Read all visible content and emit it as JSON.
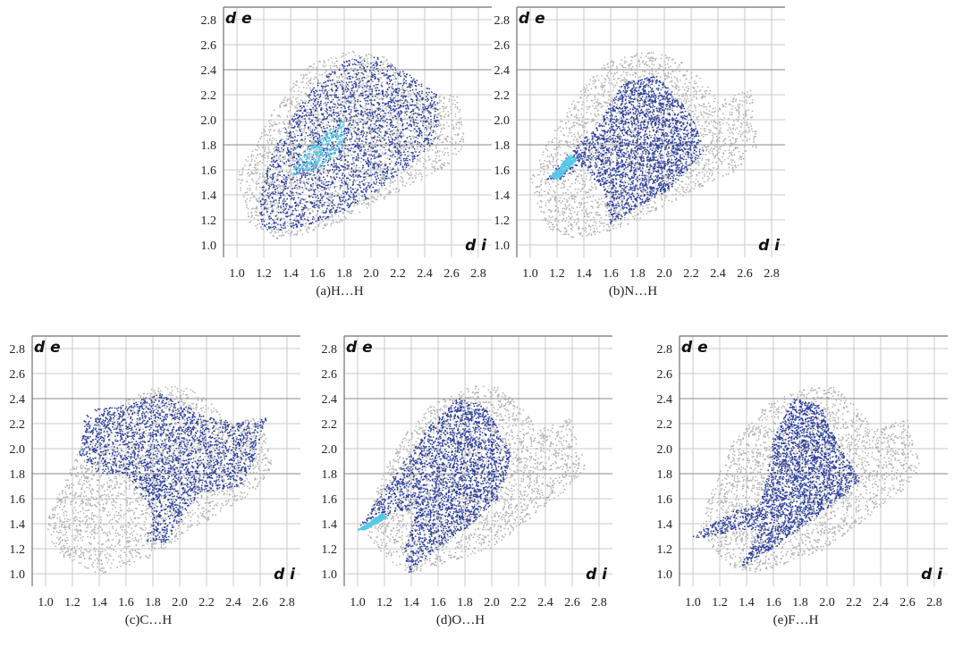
{
  "figure": {
    "axis_y_title": "d e",
    "axis_x_title": "d i",
    "colors": {
      "grey_region": "#b4b4b4",
      "blue_points": "#2b3f9f",
      "cyan_hotspot": "#57c9ea",
      "grid": "#c9c9c9",
      "background": "#ffffff"
    }
  },
  "chart_data": [
    {
      "type": "scatter",
      "caption": "(a)H…H",
      "x_ticks": [
        "1.0",
        "1.2",
        "1.4",
        "1.6",
        "1.8",
        "2.0",
        "2.2",
        "2.4",
        "2.6",
        "2.8"
      ],
      "y_ticks": [
        "1.0",
        "1.2",
        "1.4",
        "1.6",
        "1.8",
        "2.0",
        "2.2",
        "2.4",
        "2.6",
        "2.8"
      ],
      "xlim": [
        0.9,
        2.9
      ],
      "ylim": [
        0.9,
        2.9
      ],
      "xlabel": "d i",
      "ylabel": "d e",
      "highlight": "H…H",
      "region_grey": [
        [
          1.0,
          1.55
        ],
        [
          1.05,
          1.35
        ],
        [
          1.1,
          1.15
        ],
        [
          1.3,
          1.05
        ],
        [
          1.6,
          1.1
        ],
        [
          1.9,
          1.25
        ],
        [
          2.25,
          1.45
        ],
        [
          2.55,
          1.6
        ],
        [
          2.7,
          1.8
        ],
        [
          2.65,
          2.25
        ],
        [
          2.4,
          2.15
        ],
        [
          2.3,
          2.3
        ],
        [
          2.1,
          2.5
        ],
        [
          1.85,
          2.55
        ],
        [
          1.55,
          2.45
        ],
        [
          1.35,
          2.2
        ],
        [
          1.2,
          1.95
        ]
      ],
      "region_blue": [
        [
          1.15,
          1.3
        ],
        [
          1.2,
          1.12
        ],
        [
          1.4,
          1.12
        ],
        [
          1.65,
          1.2
        ],
        [
          1.95,
          1.35
        ],
        [
          2.25,
          1.6
        ],
        [
          2.5,
          1.85
        ],
        [
          2.5,
          2.2
        ],
        [
          2.3,
          2.35
        ],
        [
          2.05,
          2.5
        ],
        [
          1.85,
          2.5
        ],
        [
          1.6,
          2.3
        ],
        [
          1.4,
          2.0
        ],
        [
          1.25,
          1.7
        ]
      ],
      "region_cyan": [
        [
          1.4,
          1.55
        ],
        [
          1.6,
          1.6
        ],
        [
          1.8,
          1.8
        ],
        [
          1.8,
          2.0
        ],
        [
          1.65,
          1.9
        ],
        [
          1.5,
          1.75
        ]
      ]
    },
    {
      "type": "scatter",
      "caption": "(b)N…H",
      "x_ticks": [
        "1.0",
        "1.2",
        "1.4",
        "1.6",
        "1.8",
        "2.0",
        "2.2",
        "2.4",
        "2.6",
        "2.8"
      ],
      "y_ticks": [
        "1.0",
        "1.2",
        "1.4",
        "1.6",
        "1.8",
        "2.0",
        "2.2",
        "2.4",
        "2.6",
        "2.8"
      ],
      "xlim": [
        0.9,
        2.9
      ],
      "ylim": [
        0.9,
        2.9
      ],
      "xlabel": "d i",
      "ylabel": "d e",
      "highlight": "N…H",
      "region_grey": [
        [
          1.0,
          1.55
        ],
        [
          1.05,
          1.35
        ],
        [
          1.1,
          1.15
        ],
        [
          1.3,
          1.05
        ],
        [
          1.6,
          1.1
        ],
        [
          1.9,
          1.25
        ],
        [
          2.25,
          1.45
        ],
        [
          2.55,
          1.6
        ],
        [
          2.7,
          1.8
        ],
        [
          2.65,
          2.25
        ],
        [
          2.4,
          2.15
        ],
        [
          2.3,
          2.3
        ],
        [
          2.1,
          2.5
        ],
        [
          1.85,
          2.55
        ],
        [
          1.55,
          2.45
        ],
        [
          1.35,
          2.2
        ],
        [
          1.2,
          1.95
        ]
      ],
      "region_blue": [
        [
          1.12,
          1.52
        ],
        [
          1.3,
          1.75
        ],
        [
          1.5,
          1.95
        ],
        [
          1.7,
          2.3
        ],
        [
          1.95,
          2.35
        ],
        [
          2.2,
          2.05
        ],
        [
          2.3,
          1.75
        ],
        [
          2.05,
          1.45
        ],
        [
          1.8,
          1.3
        ],
        [
          1.6,
          1.15
        ],
        [
          1.55,
          1.45
        ],
        [
          1.38,
          1.62
        ],
        [
          1.22,
          1.52
        ]
      ],
      "region_cyan": [
        [
          1.15,
          1.55
        ],
        [
          1.3,
          1.72
        ],
        [
          1.35,
          1.68
        ],
        [
          1.2,
          1.52
        ]
      ]
    },
    {
      "type": "scatter",
      "caption": "(c)C…H",
      "x_ticks": [
        "1.0",
        "1.2",
        "1.4",
        "1.6",
        "1.8",
        "2.0",
        "2.2",
        "2.4",
        "2.6",
        "2.8"
      ],
      "y_ticks": [
        "1.0",
        "1.2",
        "1.4",
        "1.6",
        "1.8",
        "2.0",
        "2.2",
        "2.4",
        "2.6",
        "2.8"
      ],
      "xlim": [
        0.9,
        2.9
      ],
      "ylim": [
        0.9,
        2.9
      ],
      "xlabel": "d i",
      "ylabel": "d e",
      "highlight": "C…H",
      "region_grey": [
        [
          1.0,
          1.4
        ],
        [
          1.05,
          1.25
        ],
        [
          1.15,
          1.1
        ],
        [
          1.4,
          1.0
        ],
        [
          1.75,
          1.1
        ],
        [
          1.95,
          1.25
        ],
        [
          2.25,
          1.45
        ],
        [
          2.55,
          1.65
        ],
        [
          2.7,
          1.85
        ],
        [
          2.6,
          2.25
        ],
        [
          2.35,
          2.2
        ],
        [
          2.25,
          2.35
        ],
        [
          2.05,
          2.5
        ],
        [
          1.85,
          2.5
        ],
        [
          1.6,
          2.4
        ],
        [
          1.3,
          2.1
        ],
        [
          1.15,
          1.75
        ]
      ],
      "region_blue": [
        [
          1.25,
          1.95
        ],
        [
          1.3,
          2.3
        ],
        [
          1.6,
          2.35
        ],
        [
          1.85,
          2.45
        ],
        [
          2.2,
          2.25
        ],
        [
          2.55,
          2.2
        ],
        [
          2.65,
          2.25
        ],
        [
          2.55,
          1.9
        ],
        [
          2.45,
          1.7
        ],
        [
          2.15,
          1.65
        ],
        [
          1.9,
          1.25
        ],
        [
          1.75,
          1.25
        ],
        [
          1.8,
          1.5
        ],
        [
          1.6,
          1.8
        ],
        [
          1.4,
          1.8
        ]
      ],
      "region_cyan": []
    },
    {
      "type": "scatter",
      "caption": "(d)O…H",
      "x_ticks": [
        "1.0",
        "1.2",
        "1.4",
        "1.6",
        "1.8",
        "2.0",
        "2.2",
        "2.4",
        "2.6",
        "2.8"
      ],
      "y_ticks": [
        "1.0",
        "1.2",
        "1.4",
        "1.6",
        "1.8",
        "2.0",
        "2.2",
        "2.4",
        "2.6",
        "2.8"
      ],
      "xlim": [
        0.9,
        2.9
      ],
      "ylim": [
        0.9,
        2.9
      ],
      "xlabel": "d i",
      "ylabel": "d e",
      "highlight": "O…H",
      "region_grey": [
        [
          1.05,
          1.35
        ],
        [
          1.15,
          1.2
        ],
        [
          1.3,
          1.05
        ],
        [
          1.4,
          1.0
        ],
        [
          1.7,
          1.1
        ],
        [
          2.0,
          1.2
        ],
        [
          2.3,
          1.45
        ],
        [
          2.55,
          1.65
        ],
        [
          2.7,
          1.85
        ],
        [
          2.6,
          2.25
        ],
        [
          2.35,
          2.15
        ],
        [
          2.25,
          2.3
        ],
        [
          2.05,
          2.5
        ],
        [
          1.85,
          2.5
        ],
        [
          1.55,
          2.35
        ],
        [
          1.3,
          2.05
        ],
        [
          1.15,
          1.7
        ]
      ],
      "region_blue": [
        [
          1.0,
          1.35
        ],
        [
          1.3,
          1.5
        ],
        [
          1.45,
          1.52
        ],
        [
          1.35,
          1.2
        ],
        [
          1.38,
          1.0
        ],
        [
          1.6,
          1.2
        ],
        [
          1.85,
          1.4
        ],
        [
          2.05,
          1.6
        ],
        [
          2.15,
          1.95
        ],
        [
          1.95,
          2.35
        ],
        [
          1.75,
          2.4
        ],
        [
          1.55,
          2.2
        ],
        [
          1.35,
          1.9
        ],
        [
          1.15,
          1.6
        ]
      ],
      "region_cyan": [
        [
          1.0,
          1.35
        ],
        [
          1.18,
          1.48
        ],
        [
          1.22,
          1.45
        ],
        [
          1.05,
          1.35
        ]
      ]
    },
    {
      "type": "scatter",
      "caption": "(e)F…H",
      "x_ticks": [
        "1.0",
        "1.2",
        "1.4",
        "1.6",
        "1.8",
        "2.0",
        "2.2",
        "2.4",
        "2.6",
        "2.8"
      ],
      "y_ticks": [
        "1.0",
        "1.2",
        "1.4",
        "1.6",
        "1.8",
        "2.0",
        "2.2",
        "2.4",
        "2.6",
        "2.8"
      ],
      "xlim": [
        0.9,
        2.9
      ],
      "ylim": [
        0.9,
        2.9
      ],
      "xlabel": "d i",
      "ylabel": "d e",
      "highlight": "F…H",
      "region_grey": [
        [
          1.05,
          1.35
        ],
        [
          1.15,
          1.2
        ],
        [
          1.3,
          1.05
        ],
        [
          1.45,
          1.0
        ],
        [
          1.75,
          1.1
        ],
        [
          2.0,
          1.2
        ],
        [
          2.3,
          1.45
        ],
        [
          2.55,
          1.65
        ],
        [
          2.7,
          1.85
        ],
        [
          2.6,
          2.25
        ],
        [
          2.35,
          2.15
        ],
        [
          2.25,
          2.3
        ],
        [
          2.05,
          2.5
        ],
        [
          1.85,
          2.5
        ],
        [
          1.55,
          2.35
        ],
        [
          1.3,
          2.05
        ],
        [
          1.15,
          1.7
        ]
      ],
      "region_blue": [
        [
          1.0,
          1.3
        ],
        [
          1.3,
          1.5
        ],
        [
          1.5,
          1.55
        ],
        [
          1.55,
          1.75
        ],
        [
          1.6,
          2.1
        ],
        [
          1.75,
          2.4
        ],
        [
          1.95,
          2.35
        ],
        [
          2.1,
          2.0
        ],
        [
          2.25,
          1.75
        ],
        [
          2.1,
          1.6
        ],
        [
          1.85,
          1.4
        ],
        [
          1.6,
          1.2
        ],
        [
          1.35,
          1.05
        ],
        [
          1.5,
          1.35
        ],
        [
          1.35,
          1.35
        ],
        [
          1.05,
          1.28
        ]
      ],
      "region_cyan": []
    }
  ]
}
